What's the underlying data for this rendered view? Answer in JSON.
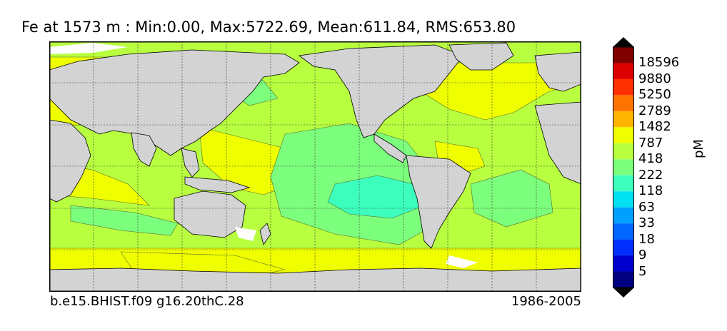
{
  "title": "Fe at 1573 m : Min:0.00, Max:5722.69, Mean:611.84, RMS:653.80",
  "case_label": "b.e15.BHIST.f09 g16.20thC.28",
  "period_label": "1986-2005",
  "units": "pM",
  "colorbar": {
    "levels": [
      {
        "label": "5",
        "color": "#000080"
      },
      {
        "label": "9",
        "color": "#0000ce"
      },
      {
        "label": "18",
        "color": "#0030ff"
      },
      {
        "label": "33",
        "color": "#0068ff"
      },
      {
        "label": "63",
        "color": "#00a0ff"
      },
      {
        "label": "118",
        "color": "#00e0f0"
      },
      {
        "label": "222",
        "color": "#3cffbe"
      },
      {
        "label": "418",
        "color": "#7cff7c"
      },
      {
        "label": "787",
        "color": "#b8ff40"
      },
      {
        "label": "1482",
        "color": "#f0ff00"
      },
      {
        "label": "2789",
        "color": "#ffb400"
      },
      {
        "label": "5250",
        "color": "#ff7400"
      },
      {
        "label": "9880",
        "color": "#ff3000"
      },
      {
        "label": "18596",
        "color": "#dd0000"
      }
    ],
    "under_color": "#000080",
    "over_color": "#800000",
    "top_color": "#800000",
    "extend_color": "#000000"
  },
  "colors": {
    "land": "#d3d3d3",
    "no_data": "#ffffff",
    "ocean_mid": "#b8ff40",
    "ocean_high": "#f0ff00",
    "ocean_low": "#7cff7c",
    "ocean_lowest": "#3cffbe"
  }
}
